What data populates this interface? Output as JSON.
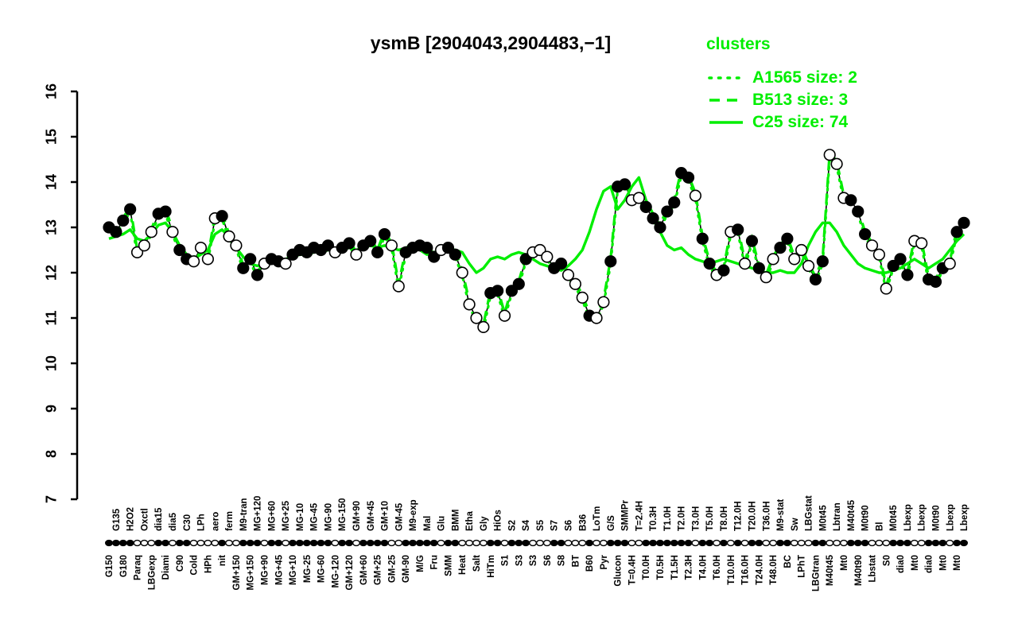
{
  "title": "ysmB [2904043,2904483,−1]",
  "legend": {
    "title": "clusters",
    "entries": [
      {
        "label": "A1565 size: 2",
        "style": "dotted"
      },
      {
        "label": "B513 size: 3",
        "style": "dashed"
      },
      {
        "label": "C25 size: 74",
        "style": "solid"
      }
    ]
  },
  "colors": {
    "cluster_green": "#00ee00",
    "point_filled": "#000000",
    "point_open_fill": "#ffffff",
    "series_line": "#000000",
    "axis": "#000000",
    "background": "#ffffff"
  },
  "chart_data": {
    "type": "line",
    "title": "ysmB [2904043,2904483,−1]",
    "ylabel": "",
    "xlabel": "",
    "ylim": [
      7,
      16
    ],
    "yticks": [
      7,
      8,
      9,
      10,
      11,
      12,
      13,
      14,
      15,
      16
    ],
    "grid": false,
    "legend_position": "top-right",
    "categories": [
      "G150",
      "G135",
      "G180",
      "H2O2",
      "Paraq",
      "Oxctl",
      "LBGexp",
      "dia15",
      "Diami",
      "dia5",
      "C90",
      "C30",
      "Cold",
      "LPh",
      "HPh",
      "aero",
      "nit",
      "ferm",
      "GM+150",
      "M9-tran",
      "MG+150",
      "MG+120",
      "MG+90",
      "MG+60",
      "MG+45",
      "MG+25",
      "MG+10",
      "MG-10",
      "MG-25",
      "MG-45",
      "MG-60",
      "MG-90",
      "MG-120",
      "MG-150",
      "GM+120",
      "GM+90",
      "GM+60",
      "GM+45",
      "GM+25",
      "GM+10",
      "GM-25",
      "GM-45",
      "GM-90",
      "M9-exp",
      "M/G",
      "Mal",
      "Fru",
      "Glu",
      "SMM",
      "BMM",
      "Heat",
      "Etha",
      "Salt",
      "Gly",
      "HiTm",
      "HiOs",
      "S1",
      "S2",
      "S3",
      "S4",
      "S3",
      "S5",
      "S6",
      "S7",
      "S8",
      "S6",
      "BT",
      "B36",
      "B60",
      "LoTm",
      "Pyr",
      "G/S",
      "Glucon",
      "SMMPr",
      "T=0.4H",
      "T=2.4H",
      "T0.0H",
      "T0.3H",
      "T0.5H",
      "T1.0H",
      "T1.5H",
      "T2.0H",
      "T2.3H",
      "T3.0H",
      "T4.0H",
      "T5.0H",
      "T6.0H",
      "T8.0H",
      "T10.0H",
      "T12.0H",
      "T16.0H",
      "T20.0H",
      "T24.0H",
      "T36.0H",
      "T48.0H",
      "M9-stat",
      "BC",
      "Sw",
      "LPhT",
      "LBGstat",
      "LBGtran",
      "M0t45",
      "M40t45",
      "Lbtran",
      "Mt0",
      "M40t45",
      "M40t90",
      "M0t90",
      "Lbstat",
      "Bl",
      "S0",
      "M0t45",
      "dia0",
      "Lbexp",
      "Mt0",
      "Lbexp",
      "dia0",
      "M0t90",
      "Mt0",
      "Lbexp",
      "Mt0",
      "Lbexp"
    ],
    "label_row_rule": "alternate-bottom-first",
    "series": [
      {
        "name": "expression",
        "marker": "circle-filled-or-open",
        "values": [
          13.0,
          12.9,
          13.15,
          13.4,
          12.45,
          12.6,
          12.9,
          13.3,
          13.35,
          12.9,
          12.5,
          12.3,
          12.25,
          12.55,
          12.3,
          13.2,
          13.25,
          12.8,
          12.6,
          12.1,
          12.3,
          11.95,
          12.2,
          12.3,
          12.25,
          12.2,
          12.4,
          12.5,
          12.45,
          12.55,
          12.5,
          12.6,
          12.45,
          12.55,
          12.65,
          12.4,
          12.6,
          12.7,
          12.45,
          12.85,
          12.6,
          11.7,
          12.45,
          12.55,
          12.6,
          12.55,
          12.35,
          12.5,
          12.55,
          12.4,
          12.0,
          11.3,
          11.0,
          10.8,
          11.55,
          11.6,
          11.05,
          11.6,
          11.75,
          12.3,
          12.45,
          12.5,
          12.35,
          12.1,
          12.2,
          11.95,
          11.75,
          11.45,
          11.05,
          11.0,
          11.35,
          12.25,
          13.9,
          13.95,
          13.6,
          13.65,
          13.45,
          13.2,
          13.0,
          13.35,
          13.55,
          14.2,
          14.1,
          13.7,
          12.75,
          12.2,
          11.95,
          12.05,
          12.9,
          12.95,
          12.2,
          12.7,
          12.1,
          11.9,
          12.3,
          12.55,
          12.75,
          12.3,
          12.5,
          12.15,
          11.85,
          12.25,
          14.6,
          14.4,
          13.65,
          13.6,
          13.35,
          12.85,
          12.6,
          12.4,
          11.65,
          12.15,
          12.3,
          11.95,
          12.7,
          12.65,
          11.85,
          11.8,
          12.1,
          12.2,
          12.9,
          13.1
        ],
        "filled": [
          1,
          1,
          1,
          1,
          0,
          0,
          0,
          1,
          1,
          0,
          1,
          1,
          0,
          0,
          0,
          0,
          1,
          0,
          0,
          1,
          1,
          1,
          0,
          1,
          1,
          0,
          1,
          1,
          1,
          1,
          1,
          1,
          0,
          1,
          1,
          0,
          1,
          1,
          1,
          1,
          0,
          0,
          1,
          1,
          1,
          1,
          1,
          0,
          1,
          1,
          0,
          0,
          0,
          0,
          1,
          1,
          0,
          1,
          1,
          1,
          0,
          0,
          0,
          1,
          1,
          0,
          0,
          0,
          1,
          0,
          0,
          1,
          1,
          1,
          0,
          0,
          1,
          1,
          1,
          1,
          1,
          1,
          1,
          0,
          1,
          1,
          0,
          1,
          0,
          1,
          0,
          1,
          1,
          0,
          0,
          1,
          1,
          0,
          0,
          0,
          1,
          1,
          0,
          0,
          0,
          1,
          1,
          1,
          0,
          0,
          0,
          1,
          1,
          1,
          0,
          0,
          1,
          1,
          1,
          0,
          1,
          1
        ]
      },
      {
        "name": "A1565",
        "style": "dotted",
        "derive_from": "expression",
        "offset": -0.06
      },
      {
        "name": "B513",
        "style": "dashed",
        "derive_from": "expression",
        "offset": 0.06
      },
      {
        "name": "C25",
        "style": "solid",
        "values": [
          12.75,
          12.8,
          12.85,
          12.95,
          12.75,
          12.7,
          12.85,
          13.05,
          13.1,
          12.9,
          12.6,
          12.4,
          12.3,
          12.4,
          12.5,
          12.85,
          12.95,
          12.8,
          12.55,
          12.35,
          12.2,
          12.15,
          12.2,
          12.25,
          12.25,
          12.3,
          12.35,
          12.4,
          12.4,
          12.45,
          12.45,
          12.5,
          12.5,
          12.5,
          12.55,
          12.5,
          12.55,
          12.6,
          12.55,
          12.6,
          12.55,
          12.5,
          12.55,
          12.6,
          12.5,
          12.4,
          12.45,
          12.5,
          12.55,
          12.5,
          12.45,
          12.2,
          12.0,
          12.1,
          12.3,
          12.35,
          12.3,
          12.4,
          12.45,
          12.4,
          12.3,
          12.2,
          12.15,
          12.1,
          12.05,
          12.15,
          12.3,
          12.5,
          12.9,
          13.4,
          13.8,
          13.9,
          13.4,
          13.6,
          13.9,
          14.1,
          13.6,
          13.3,
          12.9,
          12.6,
          12.5,
          12.55,
          12.4,
          12.3,
          12.25,
          12.2,
          12.25,
          12.3,
          12.25,
          12.2,
          12.15,
          12.1,
          12.05,
          12.0,
          12.0,
          12.05,
          12.0,
          12.0,
          12.2,
          12.6,
          12.9,
          13.1,
          13.1,
          12.9,
          12.6,
          12.4,
          12.2,
          12.1,
          12.05,
          12.0,
          12.0,
          12.05,
          12.1,
          12.2,
          12.3,
          12.2,
          12.1,
          12.2,
          12.3,
          12.5,
          12.7,
          12.85
        ]
      }
    ]
  }
}
